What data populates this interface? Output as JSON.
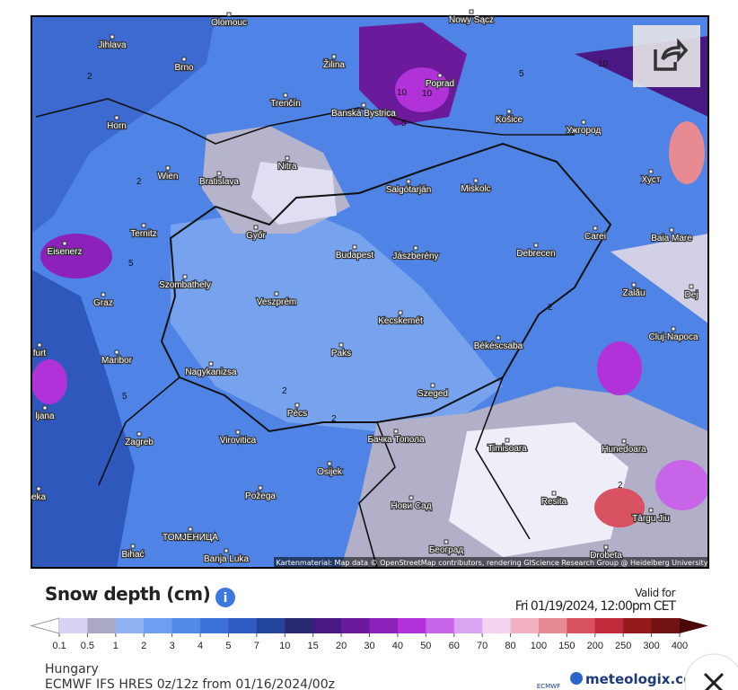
{
  "map": {
    "places": [
      "Olomouc",
      "Nowy Sącz",
      "Jihlava",
      "Brno",
      "Žilina",
      "Poprad",
      "Banská Bystrica",
      "Košice",
      "Ужгород",
      "Horn",
      "Trenčín",
      "Nitra",
      "Wien",
      "Bratislava",
      "Salgótarján",
      "Miskolc",
      "Хуст",
      "Ternitz",
      "Győr",
      "Budapest",
      "Jászberény",
      "Debrecen",
      "Carei",
      "Baia Mare",
      "Eisenerz",
      "Szombathely",
      "Veszprém",
      "Graz",
      "Zalău",
      "Kecskemét",
      "Cluj-Napoca",
      "Maribor",
      "Paks",
      "Békéscsaba",
      "Nagykanizsa",
      "Szeged",
      "Pécs",
      "Zagreb",
      "Virovitica",
      "Бачка Топола",
      "Timisoara",
      "Hunedoara",
      "Osijek",
      "Požega",
      "Нови Сад",
      "Resita",
      "Târgu Jiu",
      "Bihać",
      "ТОМЈЕНИЦА",
      "Banja Luka",
      "Београд",
      "Drobeta",
      "furt",
      "ljana",
      "eka",
      "Dej"
    ],
    "contour_labels": [
      "2",
      "2",
      "2",
      "2",
      "2",
      "5",
      "5",
      "5",
      "5",
      "10",
      "10",
      "10",
      "2"
    ],
    "attribution": "Kartenmaterial: Map data © OpenStreetMap contributors, rendering GIScience Research Group @ Heidelberg University"
  },
  "legend": {
    "title": "Snow depth (cm)",
    "valid_label": "Valid for",
    "valid_time": "Fri 01/19/2024, 12:00pm CET",
    "ticks": [
      0.1,
      0.5,
      1,
      2,
      3,
      4,
      5,
      7,
      10,
      15,
      20,
      30,
      40,
      50,
      60,
      70,
      80,
      100,
      150,
      200,
      250,
      300,
      400
    ],
    "colors": [
      "#ffffff",
      "#d6d4f2",
      "#aaa8c4",
      "#90b2f2",
      "#6d9ef0",
      "#528ae8",
      "#3c72d8",
      "#2e5cc0",
      "#22449a",
      "#2a2a72",
      "#4a1882",
      "#6c1a9c",
      "#8c22ba",
      "#b032d8",
      "#c864e8",
      "#daa4f2",
      "#f2d4f2",
      "#f2b2c2",
      "#e88a92",
      "#d85262",
      "#c02a3a",
      "#921a1a",
      "#721212",
      "#4a0808"
    ]
  },
  "footer": {
    "region": "Hungary",
    "model": "ECMWF IFS HRES 0z/12z from 01/16/2024/00z",
    "ecmwf": "ECMWF",
    "brand": "meteologix.co"
  }
}
